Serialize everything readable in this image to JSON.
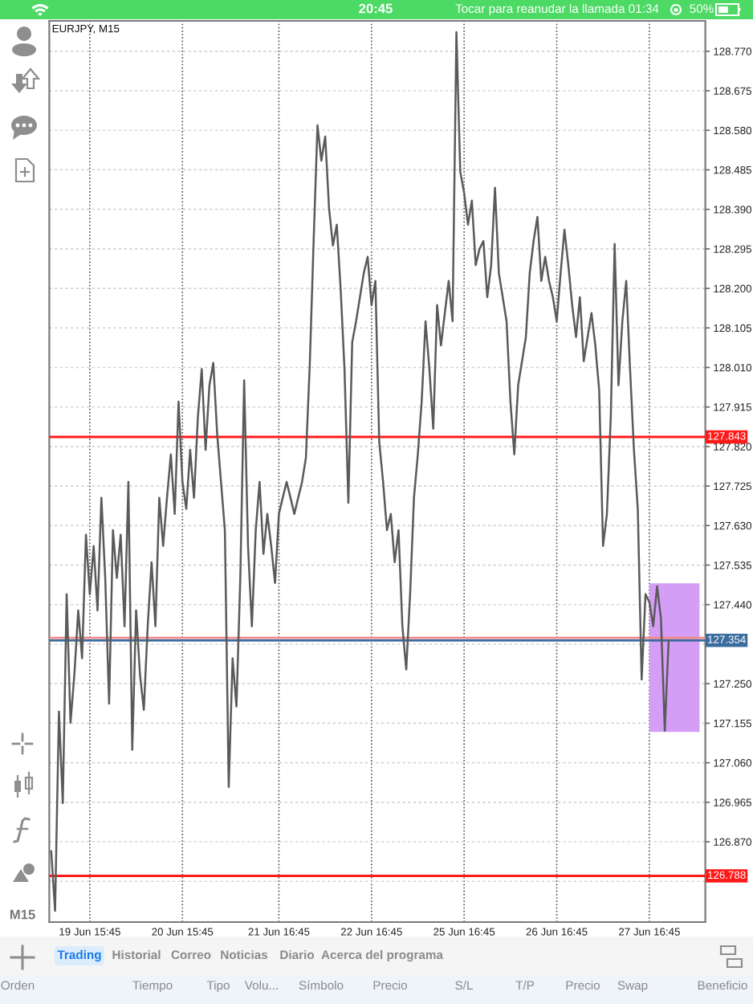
{
  "chart_data": {
    "type": "line",
    "title": "EURJPY, M15",
    "annotations": [
      "20:45",
      "Tocar para reanudar la llamada 01:34",
      "50%",
      "M15",
      "Trading",
      "Historial",
      "Correo",
      "Noticias",
      "Diario",
      "Acerca del programa",
      "Orden",
      "Tiempo",
      "Tipo",
      "Volu...",
      "Símbolo",
      "Precio",
      "S/L",
      "T/P",
      "Precio",
      "Swap",
      "Beneficio"
    ],
    "categories": [
      null,
      null,
      null,
      null,
      null,
      null,
      null,
      null,
      null,
      null,
      "19 Jun 15:45",
      null,
      null,
      null,
      null,
      null,
      null,
      null,
      null,
      null,
      null,
      null,
      null,
      null,
      null,
      null,
      null,
      null,
      null,
      null,
      null,
      null,
      null,
      null,
      "20 Jun 15:45",
      null,
      null,
      null,
      null,
      null,
      null,
      null,
      null,
      null,
      null,
      null,
      null,
      null,
      null,
      null,
      null,
      null,
      null,
      null,
      null,
      null,
      null,
      null,
      null,
      "21 Jun 16:45",
      null,
      null,
      null,
      null,
      null,
      null,
      null,
      null,
      null,
      null,
      null,
      null,
      null,
      null,
      null,
      null,
      null,
      null,
      null,
      null,
      null,
      null,
      null,
      "22 Jun 16:45",
      null,
      null,
      null,
      null,
      null,
      null,
      null,
      null,
      null,
      null,
      null,
      null,
      null,
      null,
      null,
      null,
      null,
      null,
      null,
      null,
      null,
      null,
      null,
      "25 Jun 16:45",
      null,
      null,
      null,
      null,
      null,
      null,
      null,
      null,
      null,
      null,
      null,
      null,
      null,
      null,
      null,
      null,
      null,
      null,
      null,
      null,
      null,
      null,
      null,
      "26 Jun 16:45",
      null,
      null,
      null,
      null,
      null,
      null,
      null,
      null,
      null,
      null,
      null,
      null,
      null,
      null,
      null,
      null,
      null,
      null,
      null,
      null,
      null,
      null,
      null,
      "27 Jun 16:45",
      null,
      null,
      null,
      null,
      null,
      null,
      null,
      null,
      null,
      null,
      null,
      null,
      null,
      null
    ],
    "series": [
      {
        "color": "#5a5a5a",
        "values": [
          126.847,
          126.704,
          127.183,
          126.963,
          127.465,
          127.156,
          127.272,
          127.426,
          127.311,
          127.608,
          127.465,
          127.581,
          127.426,
          127.697,
          127.504,
          127.202,
          127.619,
          127.504,
          127.608,
          127.388,
          127.735,
          127.091,
          127.426,
          127.272,
          127.187,
          127.388,
          127.542,
          127.388,
          127.697,
          127.581,
          127.697,
          127.801,
          127.658,
          127.928,
          127.735,
          127.67,
          127.812,
          127.697,
          127.89,
          128.006,
          127.812,
          127.967,
          128.021,
          127.851,
          127.735,
          127.619,
          127.002,
          127.311,
          127.195,
          127.504,
          127.979,
          127.581,
          127.388,
          127.619,
          127.735,
          127.562,
          127.658,
          127.581,
          127.492,
          127.658,
          127.697,
          127.735,
          127.697,
          127.658,
          127.697,
          127.735,
          127.793,
          128.017,
          128.314,
          128.592,
          128.507,
          128.565,
          128.392,
          128.303,
          128.353,
          128.199,
          128.006,
          127.685,
          128.071,
          128.121,
          128.179,
          128.237,
          128.276,
          128.16,
          128.218,
          127.832,
          127.735,
          127.619,
          127.658,
          127.542,
          127.619,
          127.388,
          127.284,
          127.465,
          127.697,
          127.801,
          127.928,
          128.121,
          128.006,
          127.863,
          128.16,
          128.063,
          128.141,
          128.218,
          128.121,
          128.816,
          128.48,
          128.43,
          128.353,
          128.411,
          128.256,
          128.295,
          128.314,
          128.179,
          128.256,
          128.442,
          128.237,
          128.179,
          128.121,
          127.928,
          127.801,
          127.967,
          128.025,
          128.083,
          128.237,
          128.314,
          128.372,
          128.218,
          128.276,
          128.218,
          128.179,
          128.121,
          128.237,
          128.341,
          128.256,
          128.16,
          128.083,
          128.179,
          128.025,
          128.083,
          128.141,
          128.063,
          127.955,
          127.581,
          127.658,
          127.89,
          128.307,
          127.967,
          128.121,
          128.218,
          128.006,
          127.812,
          127.67,
          127.26,
          127.465,
          127.446,
          127.388,
          127.484,
          127.407,
          127.137,
          127.354,
          null,
          null,
          null,
          null,
          null,
          null,
          null,
          null,
          null
        ]
      },
      {
        "color": "#d49ef7",
        "values": [
          null,
          null,
          null,
          null,
          null,
          null,
          null,
          null,
          null,
          null,
          null,
          null,
          null,
          null,
          null,
          null,
          null,
          null,
          null,
          null,
          null,
          null,
          null,
          null,
          null,
          null,
          null,
          null,
          null,
          null,
          null,
          null,
          null,
          null,
          null,
          null,
          null,
          null,
          null,
          null,
          null,
          null,
          null,
          null,
          null,
          null,
          null,
          null,
          null,
          null,
          null,
          null,
          null,
          null,
          null,
          null,
          null,
          null,
          null,
          null,
          null,
          null,
          null,
          null,
          null,
          null,
          null,
          null,
          null,
          null,
          null,
          null,
          null,
          null,
          null,
          null,
          null,
          null,
          null,
          null,
          null,
          null,
          null,
          null,
          null,
          null,
          null,
          null,
          null,
          null,
          null,
          null,
          null,
          null,
          null,
          null,
          null,
          null,
          null,
          null,
          null,
          null,
          null,
          null,
          null,
          null,
          null,
          null,
          null,
          null,
          null,
          null,
          null,
          null,
          null,
          null,
          null,
          null,
          null,
          null,
          null,
          null,
          null,
          null,
          null,
          null,
          null,
          null,
          null,
          null,
          null,
          null,
          null,
          null,
          null,
          null,
          null,
          null,
          null,
          null,
          null,
          null,
          null,
          null,
          null,
          null,
          null,
          null,
          null,
          null,
          null,
          null,
          null,
          null,
          null,
          null,
          null,
          null,
          null,
          null,
          null,
          null,
          null,
          null,
          null,
          null,
          null,
          null,
          null,
          null
        ],
        "lower": [
          null,
          null,
          null,
          null,
          null,
          null,
          null,
          null,
          null,
          null,
          null,
          null,
          null,
          null,
          null,
          null,
          null,
          null,
          null,
          null,
          null,
          null,
          null,
          null,
          null,
          null,
          null,
          null,
          null,
          null,
          null,
          null,
          null,
          null,
          null,
          null,
          null,
          null,
          null,
          null,
          null,
          null,
          null,
          null,
          null,
          null,
          null,
          null,
          null,
          null,
          null,
          null,
          null,
          null,
          null,
          null,
          null,
          null,
          null,
          null,
          null,
          null,
          null,
          null,
          null,
          null,
          null,
          null,
          null,
          null,
          null,
          null,
          null,
          null,
          null,
          null,
          null,
          null,
          null,
          null,
          null,
          null,
          null,
          null,
          null,
          null,
          null,
          null,
          null,
          null,
          null,
          null,
          null,
          null,
          null,
          null,
          null,
          null,
          null,
          null,
          null,
          null,
          null,
          null,
          null,
          null,
          null,
          null,
          null,
          null,
          null,
          null,
          null,
          null,
          null,
          null,
          null,
          null,
          null,
          null,
          null,
          null,
          null,
          null,
          null,
          null,
          null,
          null,
          null,
          null,
          null,
          null,
          null,
          null,
          null,
          null,
          null,
          null,
          null,
          null,
          null,
          null,
          null,
          null,
          null,
          null,
          null,
          null,
          null,
          null,
          null,
          null,
          null,
          null,
          null,
          127.134,
          127.134,
          127.134,
          127.134,
          127.134,
          127.134,
          127.134,
          127.134,
          127.134,
          127.134,
          127.134,
          127.134,
          127.134,
          127.134,
          null
        ],
        "upper": [
          null,
          null,
          null,
          null,
          null,
          null,
          null,
          null,
          null,
          null,
          null,
          null,
          null,
          null,
          null,
          null,
          null,
          null,
          null,
          null,
          null,
          null,
          null,
          null,
          null,
          null,
          null,
          null,
          null,
          null,
          null,
          null,
          null,
          null,
          null,
          null,
          null,
          null,
          null,
          null,
          null,
          null,
          null,
          null,
          null,
          null,
          null,
          null,
          null,
          null,
          null,
          null,
          null,
          null,
          null,
          null,
          null,
          null,
          null,
          null,
          null,
          null,
          null,
          null,
          null,
          null,
          null,
          null,
          null,
          null,
          null,
          null,
          null,
          null,
          null,
          null,
          null,
          null,
          null,
          null,
          null,
          null,
          null,
          null,
          null,
          null,
          null,
          null,
          null,
          null,
          null,
          null,
          null,
          null,
          null,
          null,
          null,
          null,
          null,
          null,
          null,
          null,
          null,
          null,
          null,
          null,
          null,
          null,
          null,
          null,
          null,
          null,
          null,
          null,
          null,
          null,
          null,
          null,
          null,
          null,
          null,
          null,
          null,
          null,
          null,
          null,
          null,
          null,
          null,
          null,
          null,
          null,
          null,
          null,
          null,
          null,
          null,
          null,
          null,
          null,
          null,
          null,
          null,
          null,
          null,
          null,
          null,
          null,
          null,
          null,
          null,
          null,
          null,
          null,
          null,
          127.491,
          127.491,
          127.491,
          127.491,
          127.491,
          127.491,
          127.491,
          127.491,
          127.491,
          127.491,
          127.491,
          127.491,
          127.491,
          127.491,
          null
        ]
      }
    ],
    "ylim": [
      126.677,
      128.843
    ],
    "yticks": [
      {
        "value": 128.77,
        "label": "128.770"
      },
      {
        "value": 128.675,
        "label": "128.675"
      },
      {
        "value": 128.58,
        "label": "128.580"
      },
      {
        "value": 128.485,
        "label": "128.485"
      },
      {
        "value": 128.39,
        "label": "128.390"
      },
      {
        "value": 128.295,
        "label": "128.295"
      },
      {
        "value": 128.2,
        "label": "128.200"
      },
      {
        "value": 128.105,
        "label": "128.105"
      },
      {
        "value": 128.01,
        "label": "128.010"
      },
      {
        "value": 127.915,
        "label": "127.915"
      },
      {
        "value": 127.82,
        "label": "127.820"
      },
      {
        "value": 127.725,
        "label": "127.725"
      },
      {
        "value": 127.63,
        "label": "127.630"
      },
      {
        "value": 127.535,
        "label": "127.535"
      },
      {
        "value": 127.44,
        "label": "127.440"
      },
      {
        "value": 127.345,
        "label": null
      },
      {
        "value": 127.25,
        "label": "127.250"
      },
      {
        "value": 127.155,
        "label": "127.155"
      },
      {
        "value": 127.06,
        "label": "127.060"
      },
      {
        "value": 126.965,
        "label": "126.965"
      },
      {
        "value": 126.87,
        "label": "126.870"
      },
      {
        "value": 126.775,
        "label": null
      }
    ],
    "ref_lines": [
      {
        "axis": "y",
        "value": 127.843,
        "label": "127.843",
        "color": "#ff1a1a"
      },
      {
        "axis": "y",
        "value": 126.788,
        "label": "126.788",
        "color": "#ff1a1a"
      },
      {
        "axis": "y",
        "value": 127.36,
        "color": "#f08a8a"
      },
      {
        "axis": "y",
        "value": 127.354,
        "label": "127.354",
        "color": "#3b6c9e"
      }
    ],
    "grid": true,
    "line_style": "solid"
  }
}
